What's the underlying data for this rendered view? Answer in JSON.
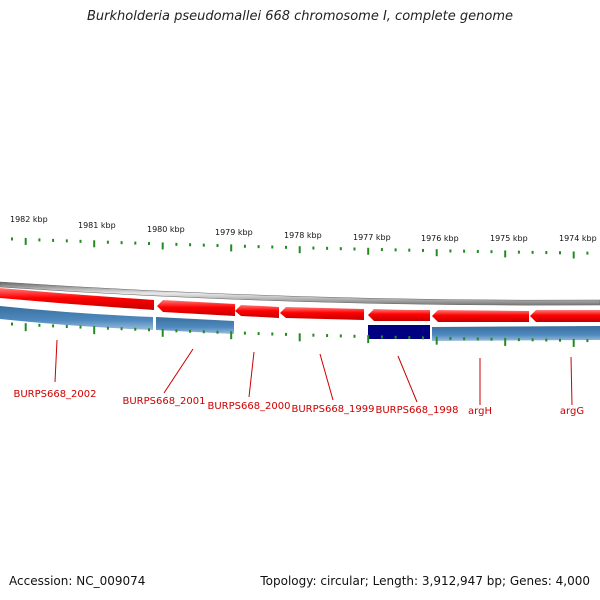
{
  "title": "Burkholderia pseudomallei 668 chromosome I, complete genome",
  "accession": "Accession: NC_009074",
  "summary": "Topology: circular; Length: 3,912,947 bp; Genes: 4,000",
  "colors": {
    "forward_gene": "#ff0000",
    "cds": "#4682b4",
    "selected": "#000080",
    "tick": "#228b22",
    "backbone": "#808080",
    "label": "#cc0000"
  },
  "kbp_labels": [
    "1982 kbp",
    "1981 kbp",
    "1980 kbp",
    "1979 kbp",
    "1978 kbp",
    "1977 kbp",
    "1976 kbp",
    "1975 kbp",
    "1974 kbp"
  ],
  "gene_labels": [
    "BURPS668_2002",
    "BURPS668_2001",
    "BURPS668_2000",
    "BURPS668_1999",
    "BURPS668_1998",
    "argH",
    "argG"
  ]
}
